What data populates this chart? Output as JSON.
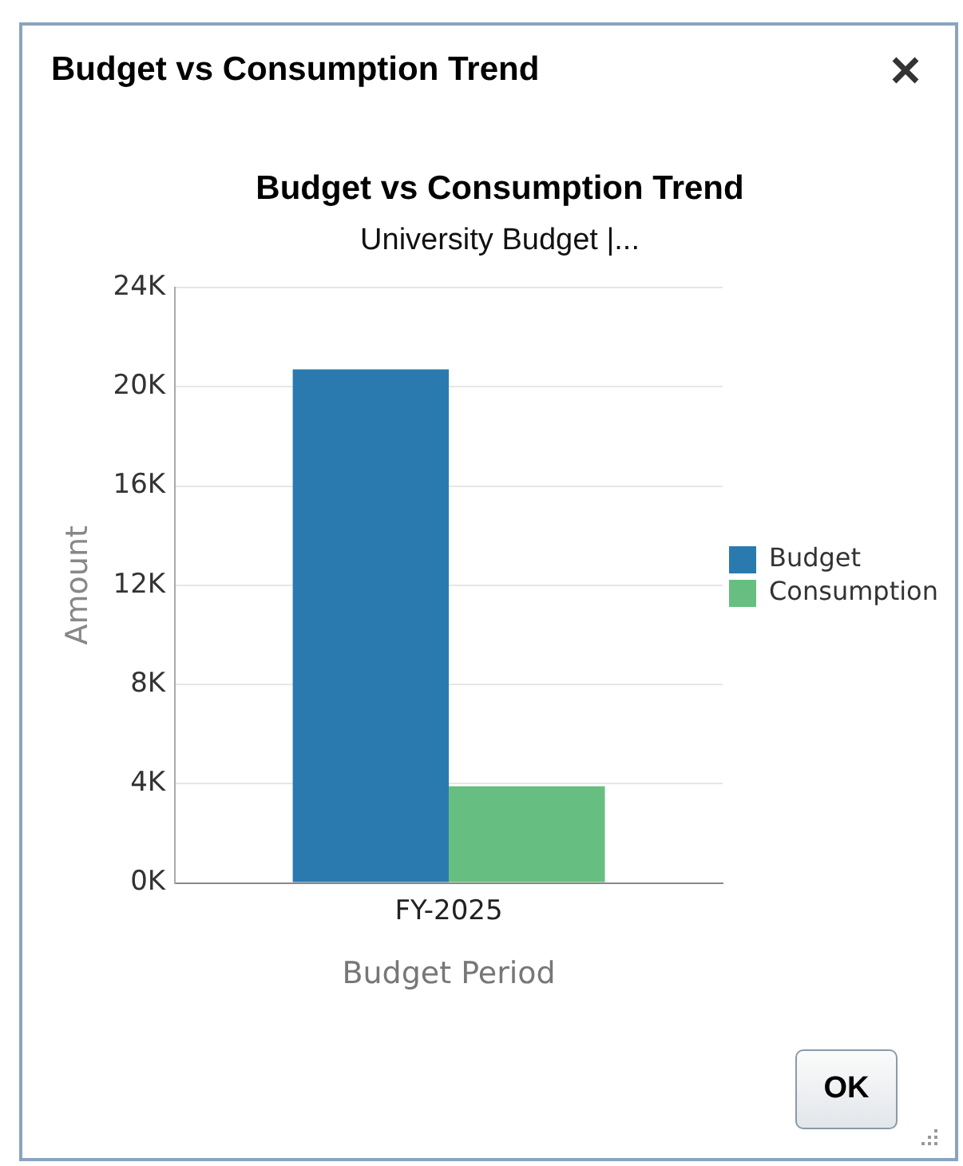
{
  "chart_data": {
    "type": "bar",
    "title": "Budget vs Consumption Trend",
    "subtitle": "University Budget |...",
    "xlabel": "Budget Period",
    "ylabel": "Amount",
    "categories": [
      "FY-2025"
    ],
    "series": [
      {
        "name": "Budget",
        "color": "#2a7ab0",
        "values": [
          20700
        ]
      },
      {
        "name": "Consumption",
        "color": "#66bf80",
        "values": [
          3900
        ]
      }
    ],
    "ylim": [
      0,
      24000
    ],
    "yticks": [
      {
        "value": 0,
        "label": "0K"
      },
      {
        "value": 4000,
        "label": "4K"
      },
      {
        "value": 8000,
        "label": "8K"
      },
      {
        "value": 12000,
        "label": "12K"
      },
      {
        "value": 16000,
        "label": "16K"
      },
      {
        "value": 20000,
        "label": "20K"
      },
      {
        "value": 24000,
        "label": "24K"
      }
    ],
    "grid": "y",
    "legend": "right",
    "annotations": [
      "OK"
    ]
  }
}
